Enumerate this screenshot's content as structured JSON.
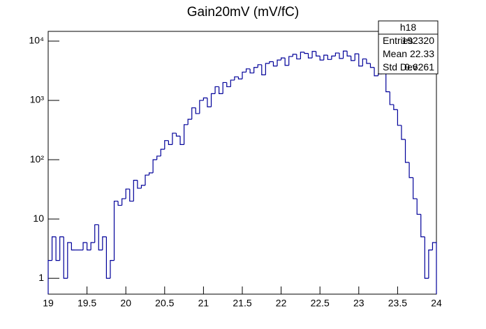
{
  "chart_data": {
    "type": "histogram",
    "title": "Gain20mV (mV/fC)",
    "bins": [
      19,
      19.05,
      19.1,
      19.15,
      19.2,
      19.25,
      19.3,
      19.35,
      19.4,
      19.45,
      19.5,
      19.55,
      19.6,
      19.65,
      19.7,
      19.75,
      19.8,
      19.85,
      19.9,
      19.95,
      20,
      20.05,
      20.1,
      20.15,
      20.2,
      20.25,
      20.3,
      20.35,
      20.4,
      20.45,
      20.5,
      20.55,
      20.6,
      20.65,
      20.7,
      20.75,
      20.8,
      20.85,
      20.9,
      20.95,
      21,
      21.05,
      21.1,
      21.15,
      21.2,
      21.25,
      21.3,
      21.35,
      21.4,
      21.45,
      21.5,
      21.55,
      21.6,
      21.65,
      21.7,
      21.75,
      21.8,
      21.85,
      21.9,
      21.95,
      22,
      22.05,
      22.1,
      22.15,
      22.2,
      22.25,
      22.3,
      22.35,
      22.4,
      22.45,
      22.5,
      22.55,
      22.6,
      22.65,
      22.7,
      22.75,
      22.8,
      22.85,
      22.9,
      22.95,
      23,
      23.05,
      23.1,
      23.15,
      23.2,
      23.25,
      23.3,
      23.35,
      23.4,
      23.45,
      23.5,
      23.55,
      23.6,
      23.65,
      23.7,
      23.75,
      23.8,
      23.85,
      23.9,
      23.95,
      24
    ],
    "values": [
      2,
      5,
      2,
      5,
      1,
      4,
      3,
      3,
      3,
      4,
      3,
      4,
      8,
      3,
      5,
      1,
      2,
      20,
      17,
      22,
      32,
      20,
      45,
      33,
      37,
      55,
      60,
      100,
      115,
      150,
      210,
      180,
      280,
      250,
      180,
      390,
      480,
      750,
      600,
      1000,
      1100,
      780,
      1300,
      1700,
      1300,
      2000,
      1700,
      2200,
      2500,
      2300,
      3000,
      3400,
      2900,
      3600,
      4000,
      2700,
      4200,
      4500,
      3800,
      4800,
      5200,
      3900,
      5500,
      6000,
      5000,
      6500,
      6200,
      5200,
      6700,
      5600,
      4800,
      5800,
      4900,
      5600,
      6300,
      5100,
      6800,
      5600,
      4700,
      6100,
      3800,
      5000,
      4200,
      3600,
      2600,
      2800,
      3100,
      1400,
      850,
      700,
      380,
      220,
      90,
      50,
      22,
      12,
      5,
      1,
      3,
      4
    ],
    "color": "#000099",
    "xlim": [
      19,
      24
    ],
    "xticks": [
      19,
      {
        "value": 19.5,
        "label": "19.5"
      },
      20,
      {
        "value": 20.5,
        "label": "20.5"
      },
      21,
      {
        "value": 21.5,
        "label": "21.5"
      },
      22,
      {
        "value": 22.5,
        "label": "22.5"
      },
      23,
      {
        "value": 23.5,
        "label": "23.5"
      },
      24
    ],
    "ylim": [
      0.54,
      14600
    ],
    "log_y": true,
    "yticks": [
      1,
      10,
      {
        "value": 100,
        "label": "10²"
      },
      {
        "value": 1000,
        "label": "10³"
      },
      {
        "value": 10000,
        "label": "10⁴"
      }
    ],
    "stats": {
      "name": "h18",
      "rows": [
        [
          "Entries",
          "192320"
        ],
        [
          "Mean",
          "22.33"
        ],
        [
          "Std Dev",
          "0.6261"
        ]
      ]
    }
  }
}
